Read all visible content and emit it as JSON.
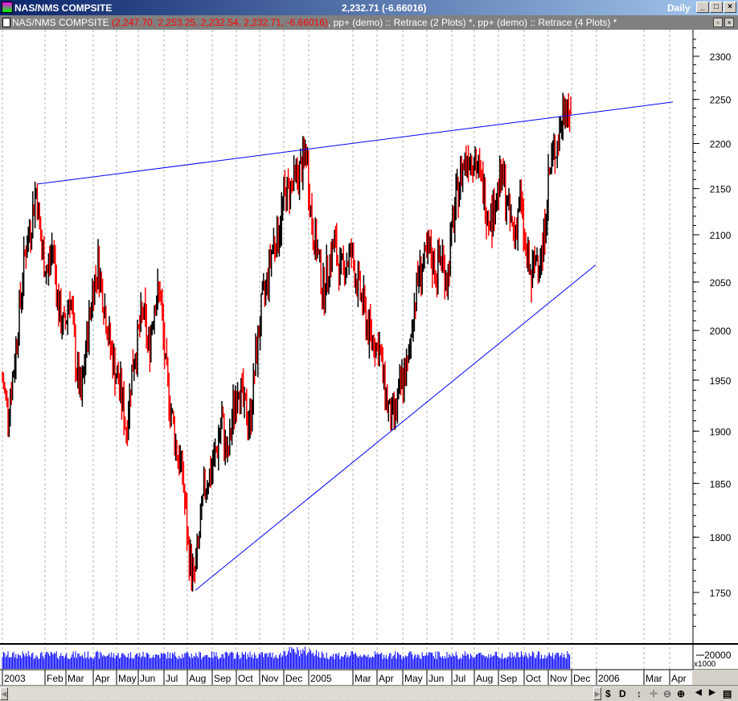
{
  "window": {
    "title": "NAS/NMS COMPSITE",
    "quote": "2,232.71 (-6.66016)",
    "period": "Daily",
    "min": "_",
    "max": "□",
    "close": "×"
  },
  "subtitle": {
    "symbol": "NAS/NMS COMPSITE ",
    "ohlc": "(2,247.70, 2,253.25, 2,232.54, 2,232.71, -6.66016)",
    "studies": ", pp+ (demo) :: Retrace (2 Plots) *, pp+ (demo) :: Retrace (4 Plots) *"
  },
  "toolbar": {
    "dollar": "$",
    "d": "D",
    "updown": "↕",
    "cross": "✛",
    "zoom_out": "⊖",
    "zoom_in": "⊕",
    "left": "◀",
    "right": "▶",
    "list": "▤"
  },
  "chart_data": {
    "type": "ohlc-bar",
    "scale": "log",
    "ylim": [
      1700,
      2330
    ],
    "y_ticks": [
      2300,
      2250,
      2200,
      2150,
      2100,
      2050,
      2000,
      1950,
      1900,
      1850,
      1800,
      1750
    ],
    "x_tick_labels": [
      "2003",
      "Feb",
      "Mar",
      "Apr",
      "May",
      "Jun",
      "Jul",
      "Aug",
      "Sep",
      "Oct",
      "Nov",
      "Dec",
      "2005",
      "Mar",
      "Apr",
      "May",
      "Jun",
      "Jul",
      "Aug",
      "Sep",
      "Oct",
      "Nov",
      "Dec",
      "2006",
      "Mar",
      "Apr"
    ],
    "grid": "vertical dashed",
    "up_color": "#000000",
    "down_color": "#ff0000",
    "weekly_close": [
      1950,
      1920,
      1960,
      2020,
      2080,
      2110,
      2150,
      2080,
      2060,
      2090,
      2020,
      2000,
      2040,
      1970,
      1930,
      1990,
      2040,
      2070,
      2030,
      1990,
      1960,
      1940,
      1900,
      1960,
      1990,
      2020,
      1980,
      2030,
      2040,
      1960,
      1920,
      1880,
      1860,
      1790,
      1760,
      1800,
      1850,
      1860,
      1880,
      1910,
      1870,
      1920,
      1950,
      1920,
      1910,
      1970,
      2020,
      2050,
      2090,
      2100,
      2140,
      2150,
      2160,
      2170,
      2190,
      2110,
      2080,
      2040,
      2070,
      2090,
      2060,
      2070,
      2080,
      2050,
      2030,
      2000,
      1990,
      1980,
      1940,
      1910,
      1920,
      1950,
      1960,
      2020,
      2060,
      2070,
      2080,
      2060,
      2080,
      2050,
      2110,
      2150,
      2180,
      2190,
      2180,
      2160,
      2130,
      2120,
      2150,
      2160,
      2120,
      2100,
      2140,
      2080,
      2050,
      2080,
      2080,
      2160,
      2190,
      2210,
      2250,
      2232.71
    ],
    "last": {
      "open": 2247.7,
      "high": 2253.25,
      "low": 2232.54,
      "close": 2232.71,
      "change": -6.66016
    },
    "trendlines": [
      {
        "color": "#0000ff",
        "from": {
          "date": "Jan 2004",
          "price": 2155
        },
        "to": {
          "date": "Apr 2006",
          "price": 2247
        }
      },
      {
        "color": "#0000ff",
        "from": {
          "date": "Aug 2004",
          "price": 1752
        },
        "to": {
          "date": "Dec 2005",
          "price": 2068
        }
      }
    ],
    "volume": {
      "tick": "20000",
      "unit": "x1000",
      "bar_color": "#0000ff"
    }
  }
}
